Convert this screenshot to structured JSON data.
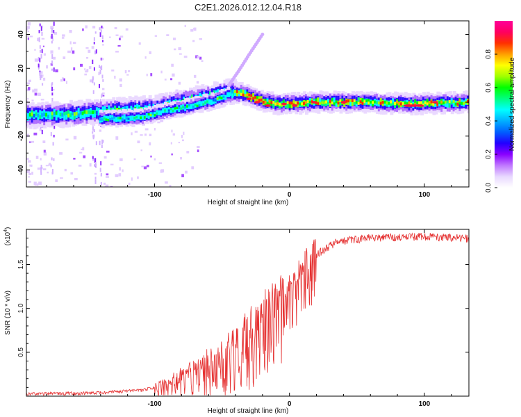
{
  "title": "C2E1.2026.012.12.04.R18",
  "chart_data": [
    {
      "type": "heatmap",
      "name": "spectrogram",
      "xlabel": "Height of straight line (km)",
      "ylabel": "Frequency (Hz)",
      "xlim": [
        -195,
        133
      ],
      "ylim": [
        -50,
        48
      ],
      "xticks": [
        -100,
        0,
        100
      ],
      "yticks": [
        -40,
        -20,
        0,
        20,
        40
      ],
      "colorbar": {
        "label": "Normalized spectral amplitude",
        "range": [
          0,
          1
        ],
        "ticks": [
          0.0,
          0.2,
          0.4,
          0.6,
          0.8
        ],
        "colors": [
          "#ffffff",
          "#e8d8ff",
          "#c078ff",
          "#8a00ff",
          "#2200ff",
          "#0060ff",
          "#00b0ff",
          "#00ffff",
          "#00ff80",
          "#00ff00",
          "#a0ff00",
          "#ffff00",
          "#ffa000",
          "#ff3000",
          "#ff0060",
          "#ff0099"
        ]
      },
      "ridge": [
        {
          "x": -195,
          "y": -8
        },
        {
          "x": -160,
          "y": -7
        },
        {
          "x": -130,
          "y": -5
        },
        {
          "x": -100,
          "y": -4
        },
        {
          "x": -80,
          "y": 0
        },
        {
          "x": -60,
          "y": 3
        },
        {
          "x": -45,
          "y": 6
        },
        {
          "x": -35,
          "y": 5
        },
        {
          "x": -20,
          "y": 1
        },
        {
          "x": -10,
          "y": -1
        },
        {
          "x": 0,
          "y": -1
        },
        {
          "x": 20,
          "y": 0
        },
        {
          "x": 60,
          "y": 0
        },
        {
          "x": 90,
          "y": -1
        },
        {
          "x": 133,
          "y": 0
        }
      ],
      "lower_branch": [
        {
          "x": -140,
          "y": -10
        },
        {
          "x": -110,
          "y": -9
        },
        {
          "x": -90,
          "y": -5
        },
        {
          "x": -70,
          "y": -2
        },
        {
          "x": -55,
          "y": 1
        },
        {
          "x": -45,
          "y": 4
        }
      ],
      "upper_branch": [
        {
          "x": -45,
          "y": 10
        },
        {
          "x": -38,
          "y": 18
        },
        {
          "x": -30,
          "y": 28
        },
        {
          "x": -20,
          "y": 40
        }
      ]
    },
    {
      "type": "line",
      "name": "snr",
      "xlabel": "Height of straight line (km)",
      "ylabel": "SNR (10 * v/v)",
      "scale_label": "(x10",
      "scale_exp": "4",
      "xlim": [
        -195,
        133
      ],
      "ylim": [
        0,
        1.9
      ],
      "xticks": [
        -100,
        0,
        100
      ],
      "yticks": [
        0.5,
        1.0,
        1.5
      ],
      "color": "#e53030",
      "trend": [
        {
          "x": -195,
          "y": 0.03
        },
        {
          "x": -150,
          "y": 0.04
        },
        {
          "x": -110,
          "y": 0.07
        },
        {
          "x": -90,
          "y": 0.14
        },
        {
          "x": -70,
          "y": 0.28
        },
        {
          "x": -50,
          "y": 0.45
        },
        {
          "x": -30,
          "y": 0.72
        },
        {
          "x": -15,
          "y": 0.95
        },
        {
          "x": 0,
          "y": 1.15
        },
        {
          "x": 10,
          "y": 1.4
        },
        {
          "x": 20,
          "y": 1.62
        },
        {
          "x": 35,
          "y": 1.76
        },
        {
          "x": 60,
          "y": 1.81
        },
        {
          "x": 100,
          "y": 1.82
        },
        {
          "x": 133,
          "y": 1.8
        }
      ]
    }
  ]
}
